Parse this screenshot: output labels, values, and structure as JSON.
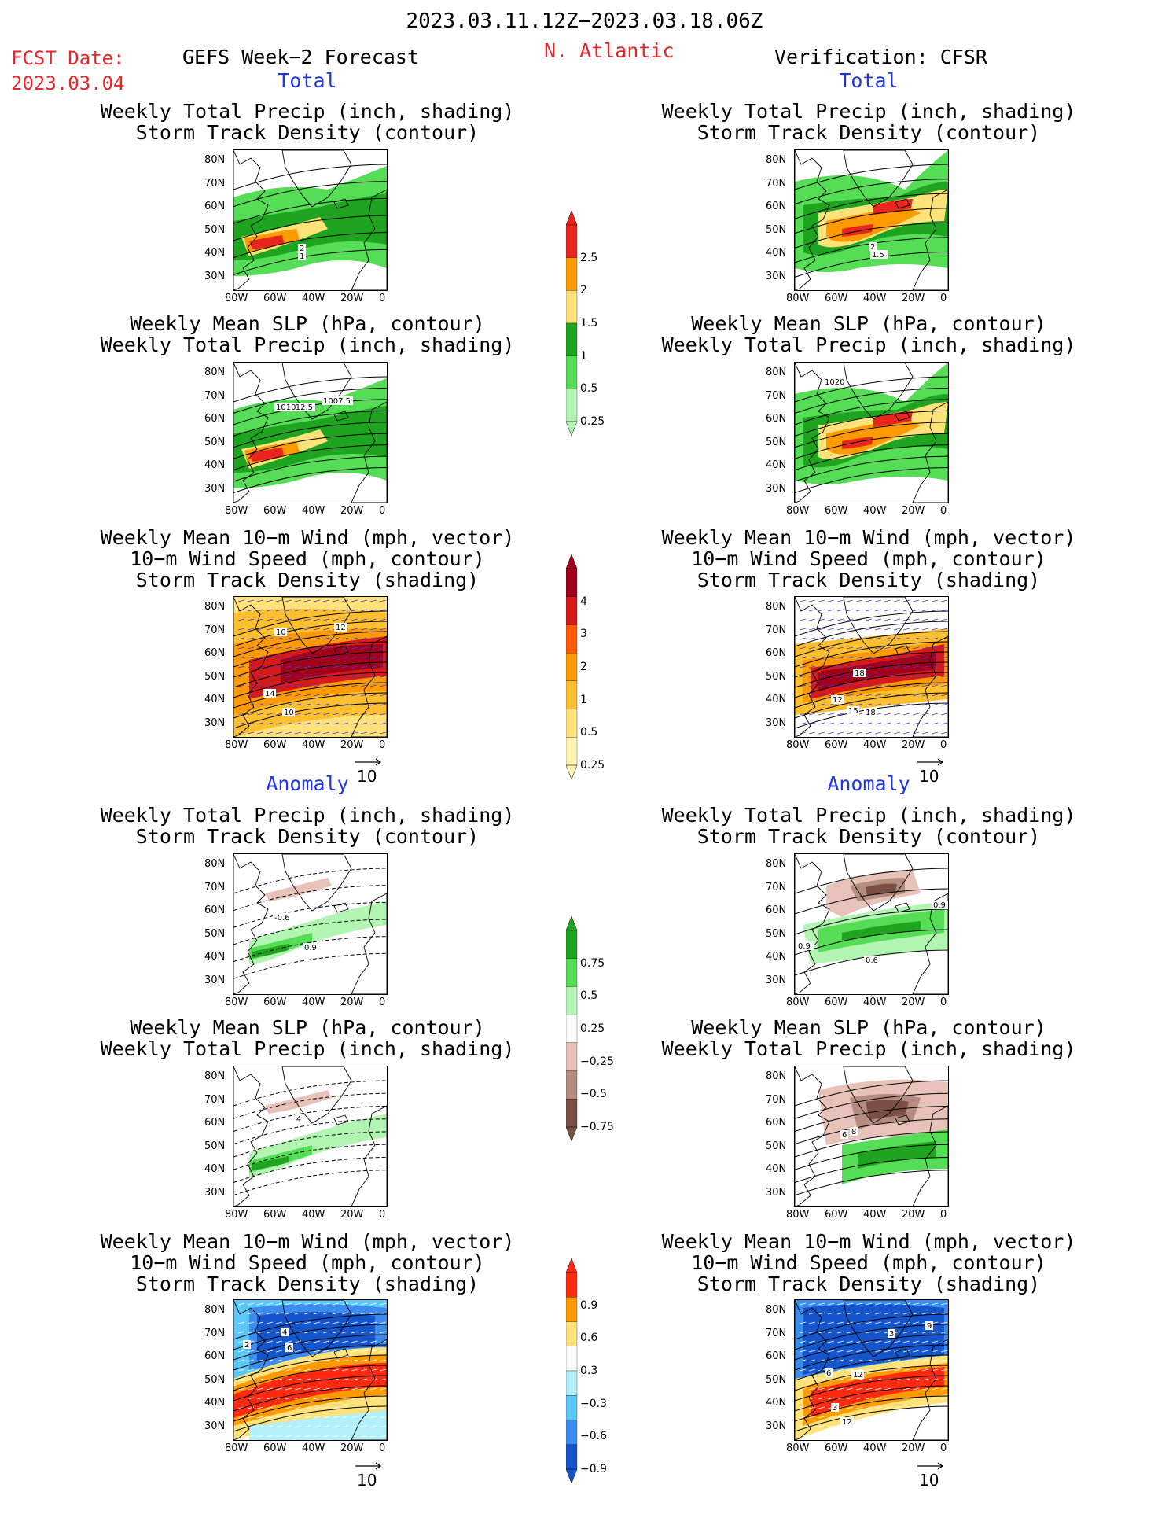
{
  "header": {
    "date_range": "2023.03.11.12Z−2023.03.18.06Z",
    "fcst_label": "FCST Date:",
    "fcst_date": "2023.03.04",
    "forecast_title": "GEFS Week−2 Forecast",
    "region": "N. Atlantic",
    "verification": "Verification: CFSR"
  },
  "sections": {
    "total": "Total",
    "anomaly": "Anomaly"
  },
  "panel_titles": {
    "precip_track": [
      "Weekly Total Precip (inch, shading)",
      "Storm Track Density (contour)"
    ],
    "slp_precip": [
      "Weekly Mean SLP (hPa, contour)",
      "Weekly Total Precip (inch, shading)"
    ],
    "wind_track": [
      "Weekly Mean 10−m Wind (mph, vector)",
      "10−m Wind Speed (mph, contour)",
      "Storm Track Density (shading)"
    ]
  },
  "axes": {
    "lat_ticks": [
      "80N",
      "70N",
      "60N",
      "50N",
      "40N",
      "30N"
    ],
    "lon_ticks": [
      "80W",
      "60W",
      "40W",
      "20W",
      "0"
    ]
  },
  "vector_ref": "10",
  "colorbars": {
    "precip_total": {
      "labels": [
        "2.5",
        "2",
        "1.5",
        "1",
        "0.5",
        "0.25"
      ],
      "colors": [
        "#e8261e",
        "#ff9a00",
        "#ffe27a",
        "#1fa41f",
        "#55dd55",
        "#b2f5b2"
      ]
    },
    "track_total": {
      "labels": [
        "4",
        "3",
        "2",
        "1",
        "0.5",
        "0.25"
      ],
      "colors": [
        "#a0001c",
        "#d61a1a",
        "#ff5a0a",
        "#ff9a00",
        "#ffc030",
        "#ffe27a",
        "#fff4b0"
      ]
    },
    "precip_anom": {
      "labels": [
        "0.75",
        "0.5",
        "0.25",
        "−0.25",
        "−0.5",
        "−0.75"
      ],
      "colors": [
        "#1fa41f",
        "#55dd55",
        "#b2f5b2",
        "#ffffff",
        "#e6c2b8",
        "#b48c80",
        "#7a5046"
      ]
    },
    "track_anom": {
      "labels": [
        "0.9",
        "0.6",
        "0.3",
        "−0.3",
        "−0.6",
        "−0.9"
      ],
      "colors": [
        "#ff2a10",
        "#ff9a00",
        "#ffe27a",
        "#ffffff",
        "#b4f0fa",
        "#5cc8fa",
        "#3c8cf0",
        "#1455cc"
      ]
    }
  },
  "contour_labels": {
    "total_precip_left": [
      "2",
      "1"
    ],
    "total_precip_right": [
      "2",
      "1.5"
    ],
    "total_slp_left": [
      "1012.5",
      "1010",
      "1007.5"
    ],
    "total_slp_right": [
      "1020"
    ],
    "total_wind_left": [
      "10",
      "12",
      "14",
      "10"
    ],
    "total_wind_right": [
      "18",
      "12",
      "15",
      "18"
    ],
    "anom_precip_left": [
      "-0.6",
      "0.9"
    ],
    "anom_precip_right": [
      "0.9",
      "0.9",
      "0.6"
    ],
    "anom_slp_left": [
      "4"
    ],
    "anom_slp_right": [
      "6",
      "8"
    ],
    "anom_wind_left": [
      "2",
      "4",
      "6"
    ],
    "anom_wind_right": [
      "3",
      "9",
      "6",
      "12",
      "3",
      "12"
    ]
  }
}
